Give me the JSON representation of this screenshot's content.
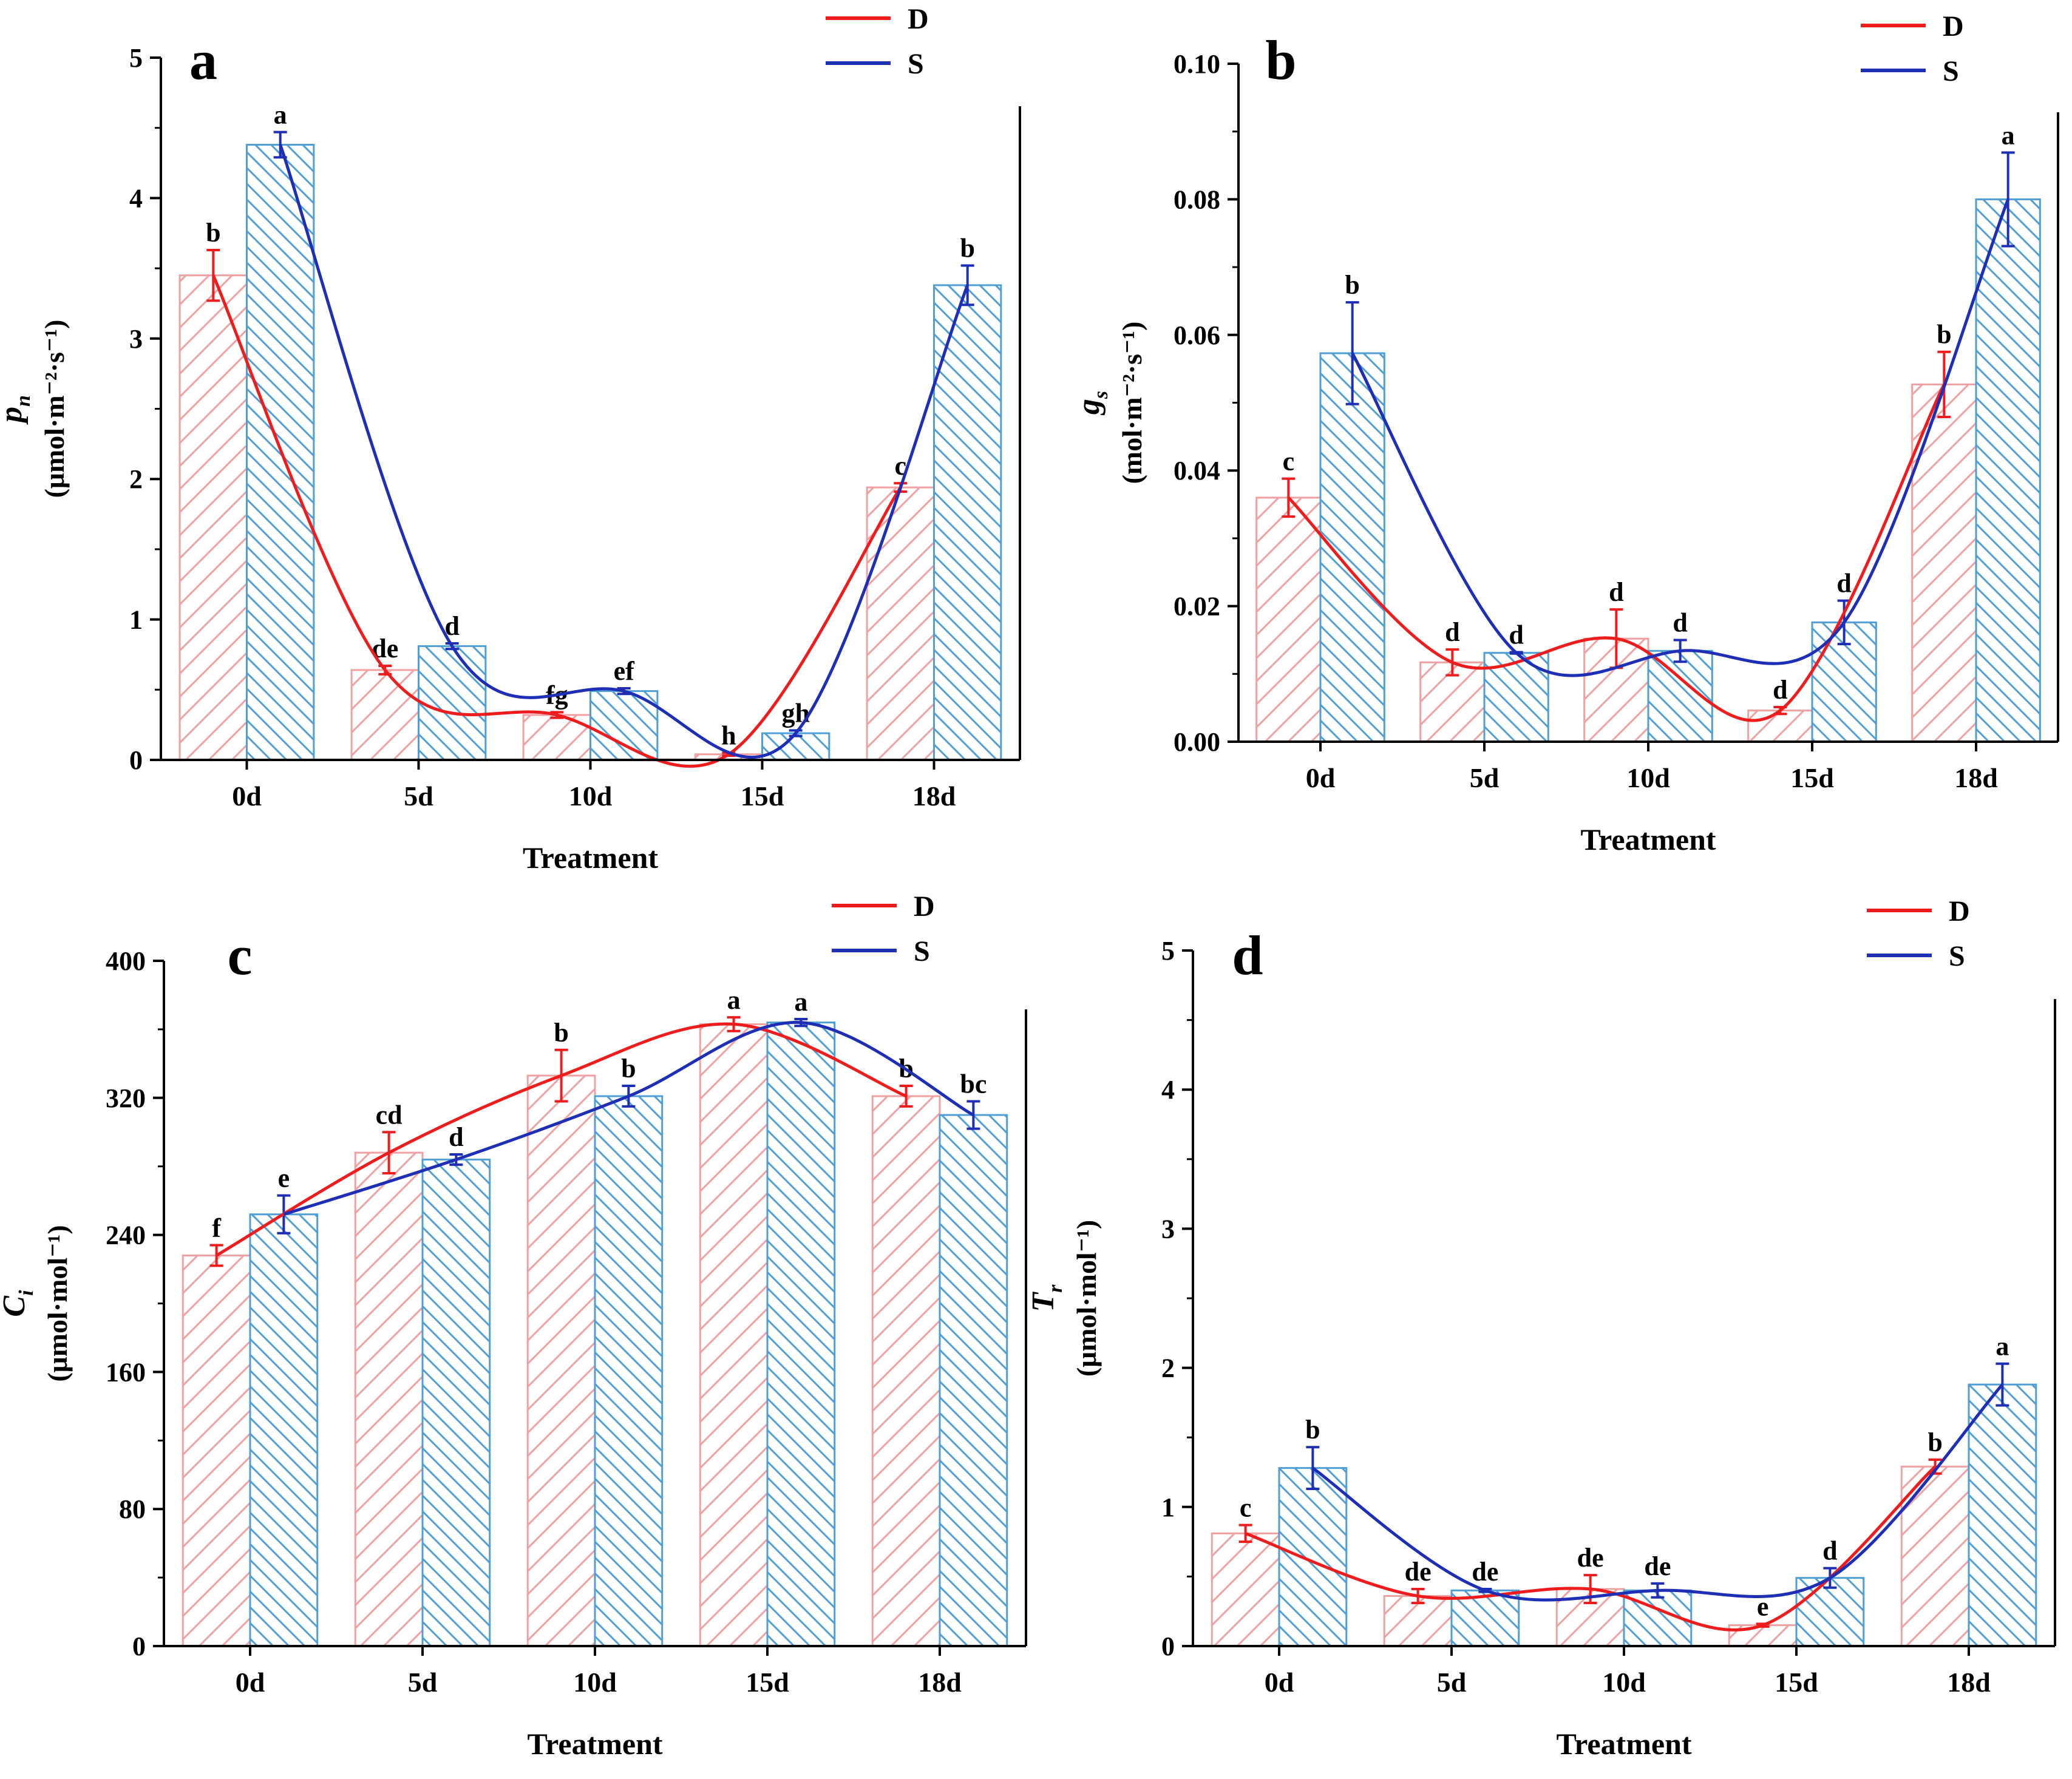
{
  "colors": {
    "D": "#ee1c1c",
    "S": "#1f2fb5",
    "D_bar": "#f0a0a0",
    "S_bar": "#4f9fd6"
  },
  "chart_data": [
    {
      "panel": "a",
      "type": "bar",
      "ylabel_main": "p",
      "ylabel_sub": "n",
      "ylabel_unit": "(μmol·m⁻²·s⁻¹)",
      "xlabel": "Treatment",
      "categories": [
        "0d",
        "5d",
        "10d",
        "15d",
        "18d"
      ],
      "ylim": [
        0,
        5
      ],
      "yticks": [
        0,
        1,
        2,
        3,
        4,
        5
      ],
      "ytick_labels": [
        "0",
        "1",
        "2",
        "3",
        "4",
        "5"
      ],
      "series": [
        {
          "name": "D",
          "values": [
            3.45,
            0.64,
            0.32,
            0.04,
            1.94
          ],
          "errors": [
            0.18,
            0.03,
            0.02,
            0.01,
            0.03
          ],
          "letters": [
            "b",
            "de",
            "fg",
            "h",
            "c"
          ]
        },
        {
          "name": "S",
          "values": [
            4.38,
            0.81,
            0.49,
            0.19,
            3.38
          ],
          "errors": [
            0.09,
            0.02,
            0.02,
            0.02,
            0.14
          ],
          "letters": [
            "a",
            "d",
            "ef",
            "gh",
            "b"
          ]
        }
      ],
      "legend": [
        "D",
        "S"
      ]
    },
    {
      "panel": "b",
      "type": "bar",
      "ylabel_main": "g",
      "ylabel_sub": "s",
      "ylabel_unit": "(mol·m⁻²·s⁻¹)",
      "xlabel": "Treatment",
      "categories": [
        "0d",
        "5d",
        "10d",
        "15d",
        "18d"
      ],
      "ylim": [
        0,
        0.1
      ],
      "yticks": [
        0,
        0.02,
        0.04,
        0.06,
        0.08,
        0.1
      ],
      "ytick_labels": [
        "0.00",
        "0.02",
        "0.04",
        "0.06",
        "0.08",
        "0.10"
      ],
      "series": [
        {
          "name": "D",
          "values": [
            0.036,
            0.0117,
            0.0152,
            0.0046,
            0.0527
          ],
          "errors": [
            0.0028,
            0.0019,
            0.0043,
            0.0005,
            0.0048
          ],
          "letters": [
            "c",
            "d",
            "d",
            "d",
            "b"
          ]
        },
        {
          "name": "S",
          "values": [
            0.0573,
            0.0131,
            0.0134,
            0.0176,
            0.08
          ],
          "errors": [
            0.0075,
            0.0001,
            0.0016,
            0.0032,
            0.0069
          ],
          "letters": [
            "b",
            "d",
            "d",
            "d",
            "a"
          ]
        }
      ],
      "legend": [
        "D",
        "S"
      ]
    },
    {
      "panel": "c",
      "type": "bar",
      "ylabel_main": "C",
      "ylabel_sub": "i",
      "ylabel_unit": "(μmol·mol⁻¹)",
      "xlabel": "Treatment",
      "categories": [
        "0d",
        "5d",
        "10d",
        "15d",
        "18d"
      ],
      "ylim": [
        0,
        400
      ],
      "yticks": [
        0,
        80,
        160,
        240,
        320,
        400
      ],
      "ytick_labels": [
        "0",
        "80",
        "160",
        "240",
        "320",
        "400"
      ],
      "series": [
        {
          "name": "D",
          "values": [
            228,
            288,
            333,
            363,
            321
          ],
          "errors": [
            6,
            12,
            15,
            4,
            6
          ],
          "letters": [
            "f",
            "cd",
            "b",
            "a",
            "b"
          ]
        },
        {
          "name": "S",
          "values": [
            252,
            284,
            321,
            364,
            310
          ],
          "errors": [
            11,
            3,
            6,
            2,
            8
          ],
          "letters": [
            "e",
            "d",
            "b",
            "a",
            "bc"
          ]
        }
      ],
      "legend": [
        "D",
        "S"
      ]
    },
    {
      "panel": "d",
      "type": "bar",
      "ylabel_main": "T",
      "ylabel_sub": "r",
      "ylabel_unit": "(μmol·mol⁻¹)",
      "xlabel": "Treatment",
      "categories": [
        "0d",
        "5d",
        "10d",
        "15d",
        "18d"
      ],
      "ylim": [
        0,
        5
      ],
      "yticks": [
        0,
        1,
        2,
        3,
        4,
        5
      ],
      "ytick_labels": [
        "0",
        "1",
        "2",
        "3",
        "4",
        "5"
      ],
      "series": [
        {
          "name": "D",
          "values": [
            0.81,
            0.36,
            0.41,
            0.15,
            1.29
          ],
          "errors": [
            0.06,
            0.05,
            0.1,
            0.01,
            0.05
          ],
          "letters": [
            "c",
            "de",
            "de",
            "e",
            "b"
          ]
        },
        {
          "name": "S",
          "values": [
            1.28,
            0.4,
            0.4,
            0.49,
            1.88
          ],
          "errors": [
            0.15,
            0.01,
            0.05,
            0.07,
            0.15
          ],
          "letters": [
            "b",
            "de",
            "de",
            "d",
            "a"
          ]
        }
      ],
      "legend": [
        "D",
        "S"
      ]
    }
  ]
}
